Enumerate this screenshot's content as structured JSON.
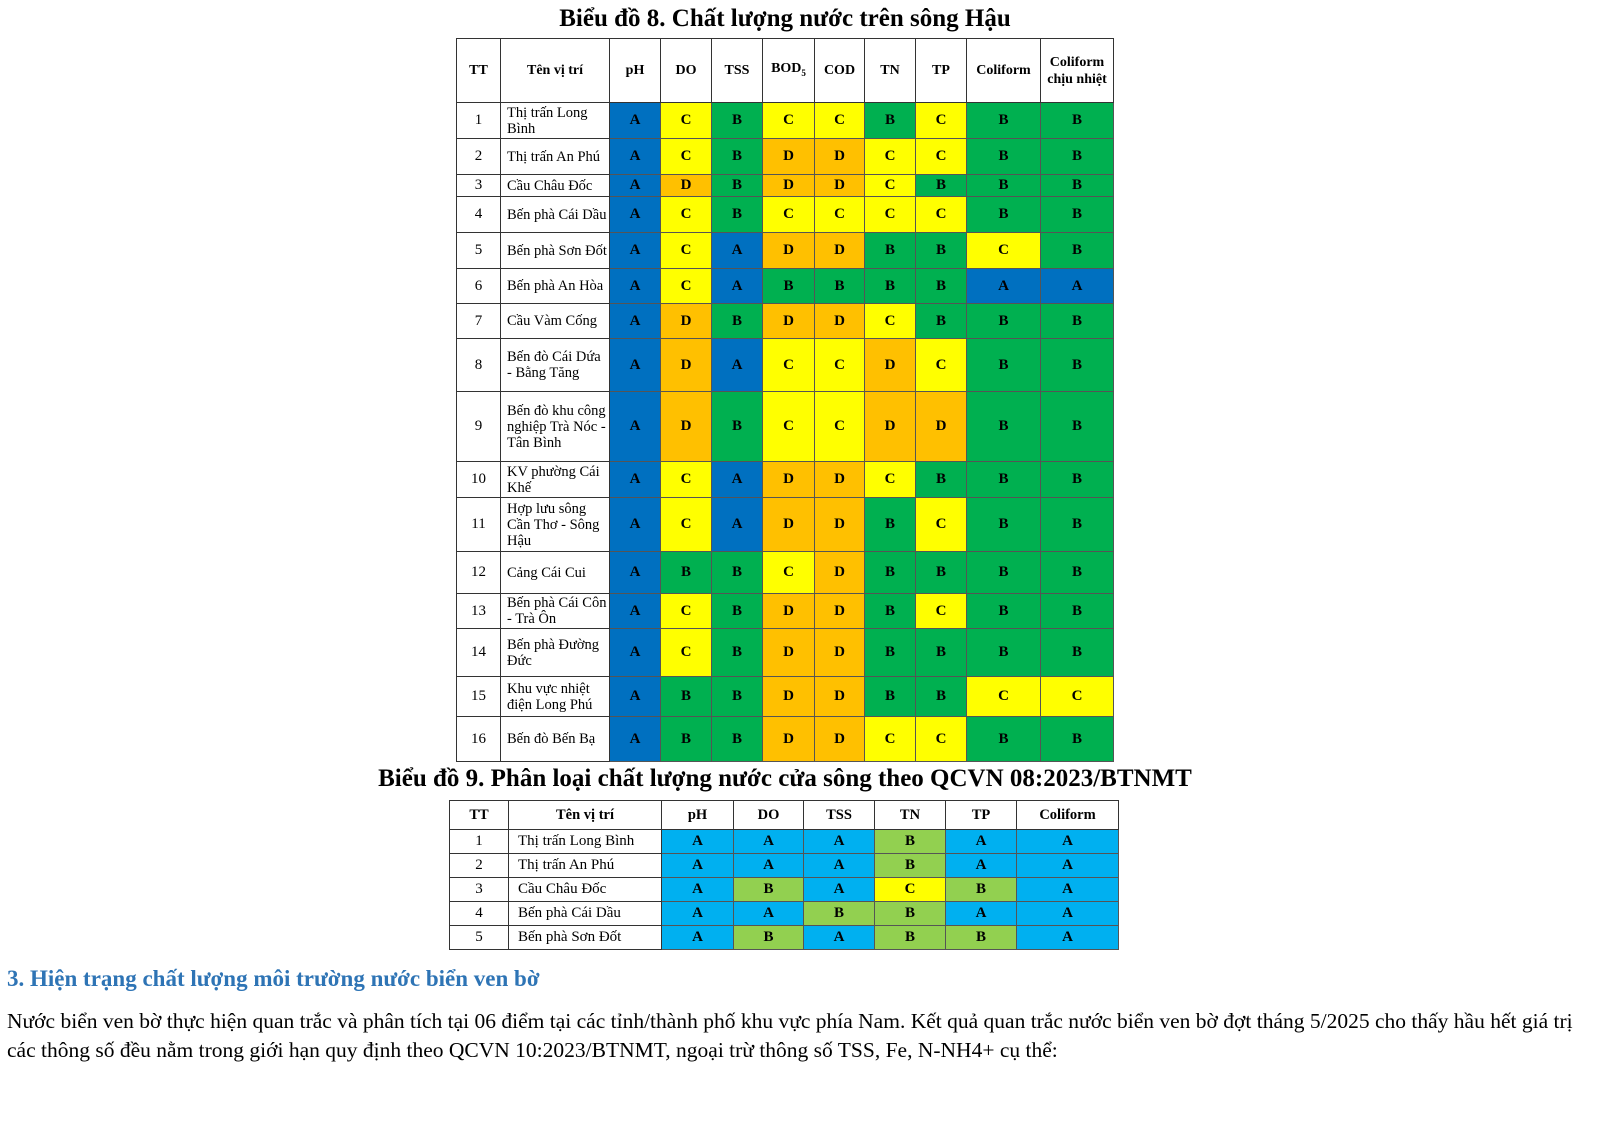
{
  "chart8": {
    "title": "Biểu đồ 8. Chất lượng nước trên sông Hậu",
    "headers": [
      "TT",
      "Tên vị trí",
      "pH",
      "DO",
      "TSS",
      "BOD5",
      "COD",
      "TN",
      "TP",
      "Coliform",
      "Coliform chịu nhiệt"
    ],
    "rows": [
      {
        "tt": "1",
        "name": "Thị trấn Long Bình",
        "v": [
          "A",
          "C",
          "B",
          "C",
          "C",
          "B",
          "C",
          "B",
          "B"
        ]
      },
      {
        "tt": "2",
        "name": "Thị trấn An Phú",
        "v": [
          "A",
          "C",
          "B",
          "D",
          "D",
          "C",
          "C",
          "B",
          "B"
        ]
      },
      {
        "tt": "3",
        "name": "Cầu Châu Đốc",
        "v": [
          "A",
          "D",
          "B",
          "D",
          "D",
          "C",
          "B",
          "B",
          "B"
        ]
      },
      {
        "tt": "4",
        "name": "Bến phà Cái Dầu",
        "v": [
          "A",
          "C",
          "B",
          "C",
          "C",
          "C",
          "C",
          "B",
          "B"
        ]
      },
      {
        "tt": "5",
        "name": "Bến phà Sơn Đốt",
        "v": [
          "A",
          "C",
          "A",
          "D",
          "D",
          "B",
          "B",
          "C",
          "B"
        ]
      },
      {
        "tt": "6",
        "name": "Bến phà An Hòa",
        "v": [
          "A",
          "C",
          "A",
          "B",
          "B",
          "B",
          "B",
          "A",
          "A"
        ]
      },
      {
        "tt": "7",
        "name": "Cầu Vàm Cống",
        "v": [
          "A",
          "D",
          "B",
          "D",
          "D",
          "C",
          "B",
          "B",
          "B"
        ]
      },
      {
        "tt": "8",
        "name": "Bến đò Cái Dứa - Bằng Tăng",
        "v": [
          "A",
          "D",
          "A",
          "C",
          "C",
          "D",
          "C",
          "B",
          "B"
        ]
      },
      {
        "tt": "9",
        "name": "Bến đò khu công nghiệp Trà Nóc - Tân Bình",
        "v": [
          "A",
          "D",
          "B",
          "C",
          "C",
          "D",
          "D",
          "B",
          "B"
        ]
      },
      {
        "tt": "10",
        "name": "KV phường Cái Khế",
        "v": [
          "A",
          "C",
          "A",
          "D",
          "D",
          "C",
          "B",
          "B",
          "B"
        ]
      },
      {
        "tt": "11",
        "name": "Hợp lưu sông Cần Thơ - Sông Hậu",
        "v": [
          "A",
          "C",
          "A",
          "D",
          "D",
          "B",
          "C",
          "B",
          "B"
        ]
      },
      {
        "tt": "12",
        "name": "Cảng Cái Cui",
        "v": [
          "A",
          "B",
          "B",
          "C",
          "D",
          "B",
          "B",
          "B",
          "B"
        ]
      },
      {
        "tt": "13",
        "name": "Bến phà Cái Côn - Trà Ôn",
        "v": [
          "A",
          "C",
          "B",
          "D",
          "D",
          "B",
          "C",
          "B",
          "B"
        ]
      },
      {
        "tt": "14",
        "name": "Bến phà Đường Đức",
        "v": [
          "A",
          "C",
          "B",
          "D",
          "D",
          "B",
          "B",
          "B",
          "B"
        ]
      },
      {
        "tt": "15",
        "name": "Khu vực nhiệt điện Long Phú",
        "v": [
          "A",
          "B",
          "B",
          "D",
          "D",
          "B",
          "B",
          "C",
          "C"
        ]
      },
      {
        "tt": "16",
        "name": "Bến đò Bến Bạ",
        "v": [
          "A",
          "B",
          "B",
          "D",
          "D",
          "C",
          "C",
          "B",
          "B"
        ]
      }
    ],
    "colors": {
      "A": "#0070c0",
      "B": "#00b050",
      "C": "#ffff00",
      "D": "#ffc000"
    }
  },
  "chart9": {
    "title": "Biểu đồ 9. Phân loại chất lượng nước cửa sông theo QCVN 08:2023/BTNMT",
    "headers": [
      "TT",
      "Tên vị trí",
      "pH",
      "DO",
      "TSS",
      "TN",
      "TP",
      "Coliform"
    ],
    "rows": [
      {
        "tt": "1",
        "name": "Thị trấn Long Bình",
        "v": [
          "A",
          "A",
          "A",
          "B",
          "A",
          "A"
        ]
      },
      {
        "tt": "2",
        "name": "Thị trấn An Phú",
        "v": [
          "A",
          "A",
          "A",
          "B",
          "A",
          "A"
        ]
      },
      {
        "tt": "3",
        "name": "Cầu Châu Đốc",
        "v": [
          "A",
          "B",
          "A",
          "C",
          "B",
          "A"
        ]
      },
      {
        "tt": "4",
        "name": "Bến phà Cái Dầu",
        "v": [
          "A",
          "A",
          "B",
          "B",
          "A",
          "A"
        ]
      },
      {
        "tt": "5",
        "name": "Bến phà Sơn Đốt",
        "v": [
          "A",
          "B",
          "A",
          "B",
          "B",
          "A"
        ]
      }
    ],
    "colors": {
      "A": "#00b0f0",
      "B": "#92d050",
      "C": "#ffff00"
    }
  },
  "section": {
    "heading": "3. Hiện trạng chất lượng môi trường nước biển ven bờ",
    "paragraph": "Nước biển ven bờ thực hiện quan trắc và phân tích tại 06 điểm tại các tỉnh/thành phố khu vực phía Nam. Kết quả quan trắc nước biển ven bờ đợt tháng 5/2025 cho thấy hầu hết giá trị các thông số đều nằm trong giới hạn quy định theo QCVN 10:2023/BTNMT, ngoại trừ thông số TSS, Fe, N-NH4+ cụ thể:"
  }
}
